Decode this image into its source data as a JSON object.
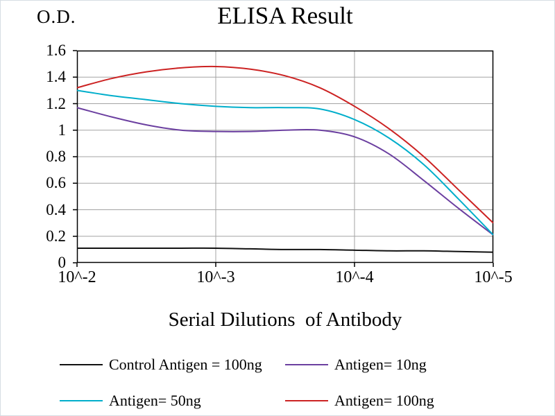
{
  "chart_data": {
    "type": "line",
    "title": "ELISA Result",
    "ylabel": "O.D.",
    "xlabel": "Serial Dilutions  of Antibody",
    "x_tick_labels": [
      "10^-2",
      "10^-3",
      "10^-4",
      "10^-5"
    ],
    "y_tick_labels": [
      "0",
      "0.2",
      "0.4",
      "0.6",
      "0.8",
      "1",
      "1.2",
      "1.4",
      "1.6"
    ],
    "ylim": [
      0,
      1.6
    ],
    "grid": true,
    "legend_position": "bottom",
    "colors": {
      "grid": "#a3a3a3",
      "axis": "#000000",
      "background": "#ffffff"
    },
    "x": [
      0,
      0.25,
      0.5,
      0.75,
      1,
      1.25,
      1.5,
      1.75,
      2,
      2.25,
      2.5,
      2.75,
      3
    ],
    "series": [
      {
        "name": "Control Antigen = 100ng",
        "color": "#111111",
        "values": [
          0.11,
          0.11,
          0.11,
          0.11,
          0.11,
          0.105,
          0.1,
          0.1,
          0.095,
          0.09,
          0.09,
          0.085,
          0.08
        ]
      },
      {
        "name": "Antigen= 10ng",
        "color": "#6b3fa0",
        "values": [
          1.17,
          1.1,
          1.04,
          1.0,
          0.99,
          0.99,
          1.0,
          1.0,
          0.95,
          0.82,
          0.62,
          0.41,
          0.21
        ]
      },
      {
        "name": "Antigen= 50ng",
        "color": "#00aecb",
        "values": [
          1.3,
          1.26,
          1.23,
          1.2,
          1.18,
          1.17,
          1.17,
          1.16,
          1.08,
          0.94,
          0.74,
          0.48,
          0.21
        ]
      },
      {
        "name": "Antigen= 100ng",
        "color": "#cc2222",
        "values": [
          1.32,
          1.39,
          1.44,
          1.47,
          1.48,
          1.46,
          1.41,
          1.32,
          1.18,
          1.01,
          0.8,
          0.55,
          0.3
        ]
      }
    ]
  }
}
